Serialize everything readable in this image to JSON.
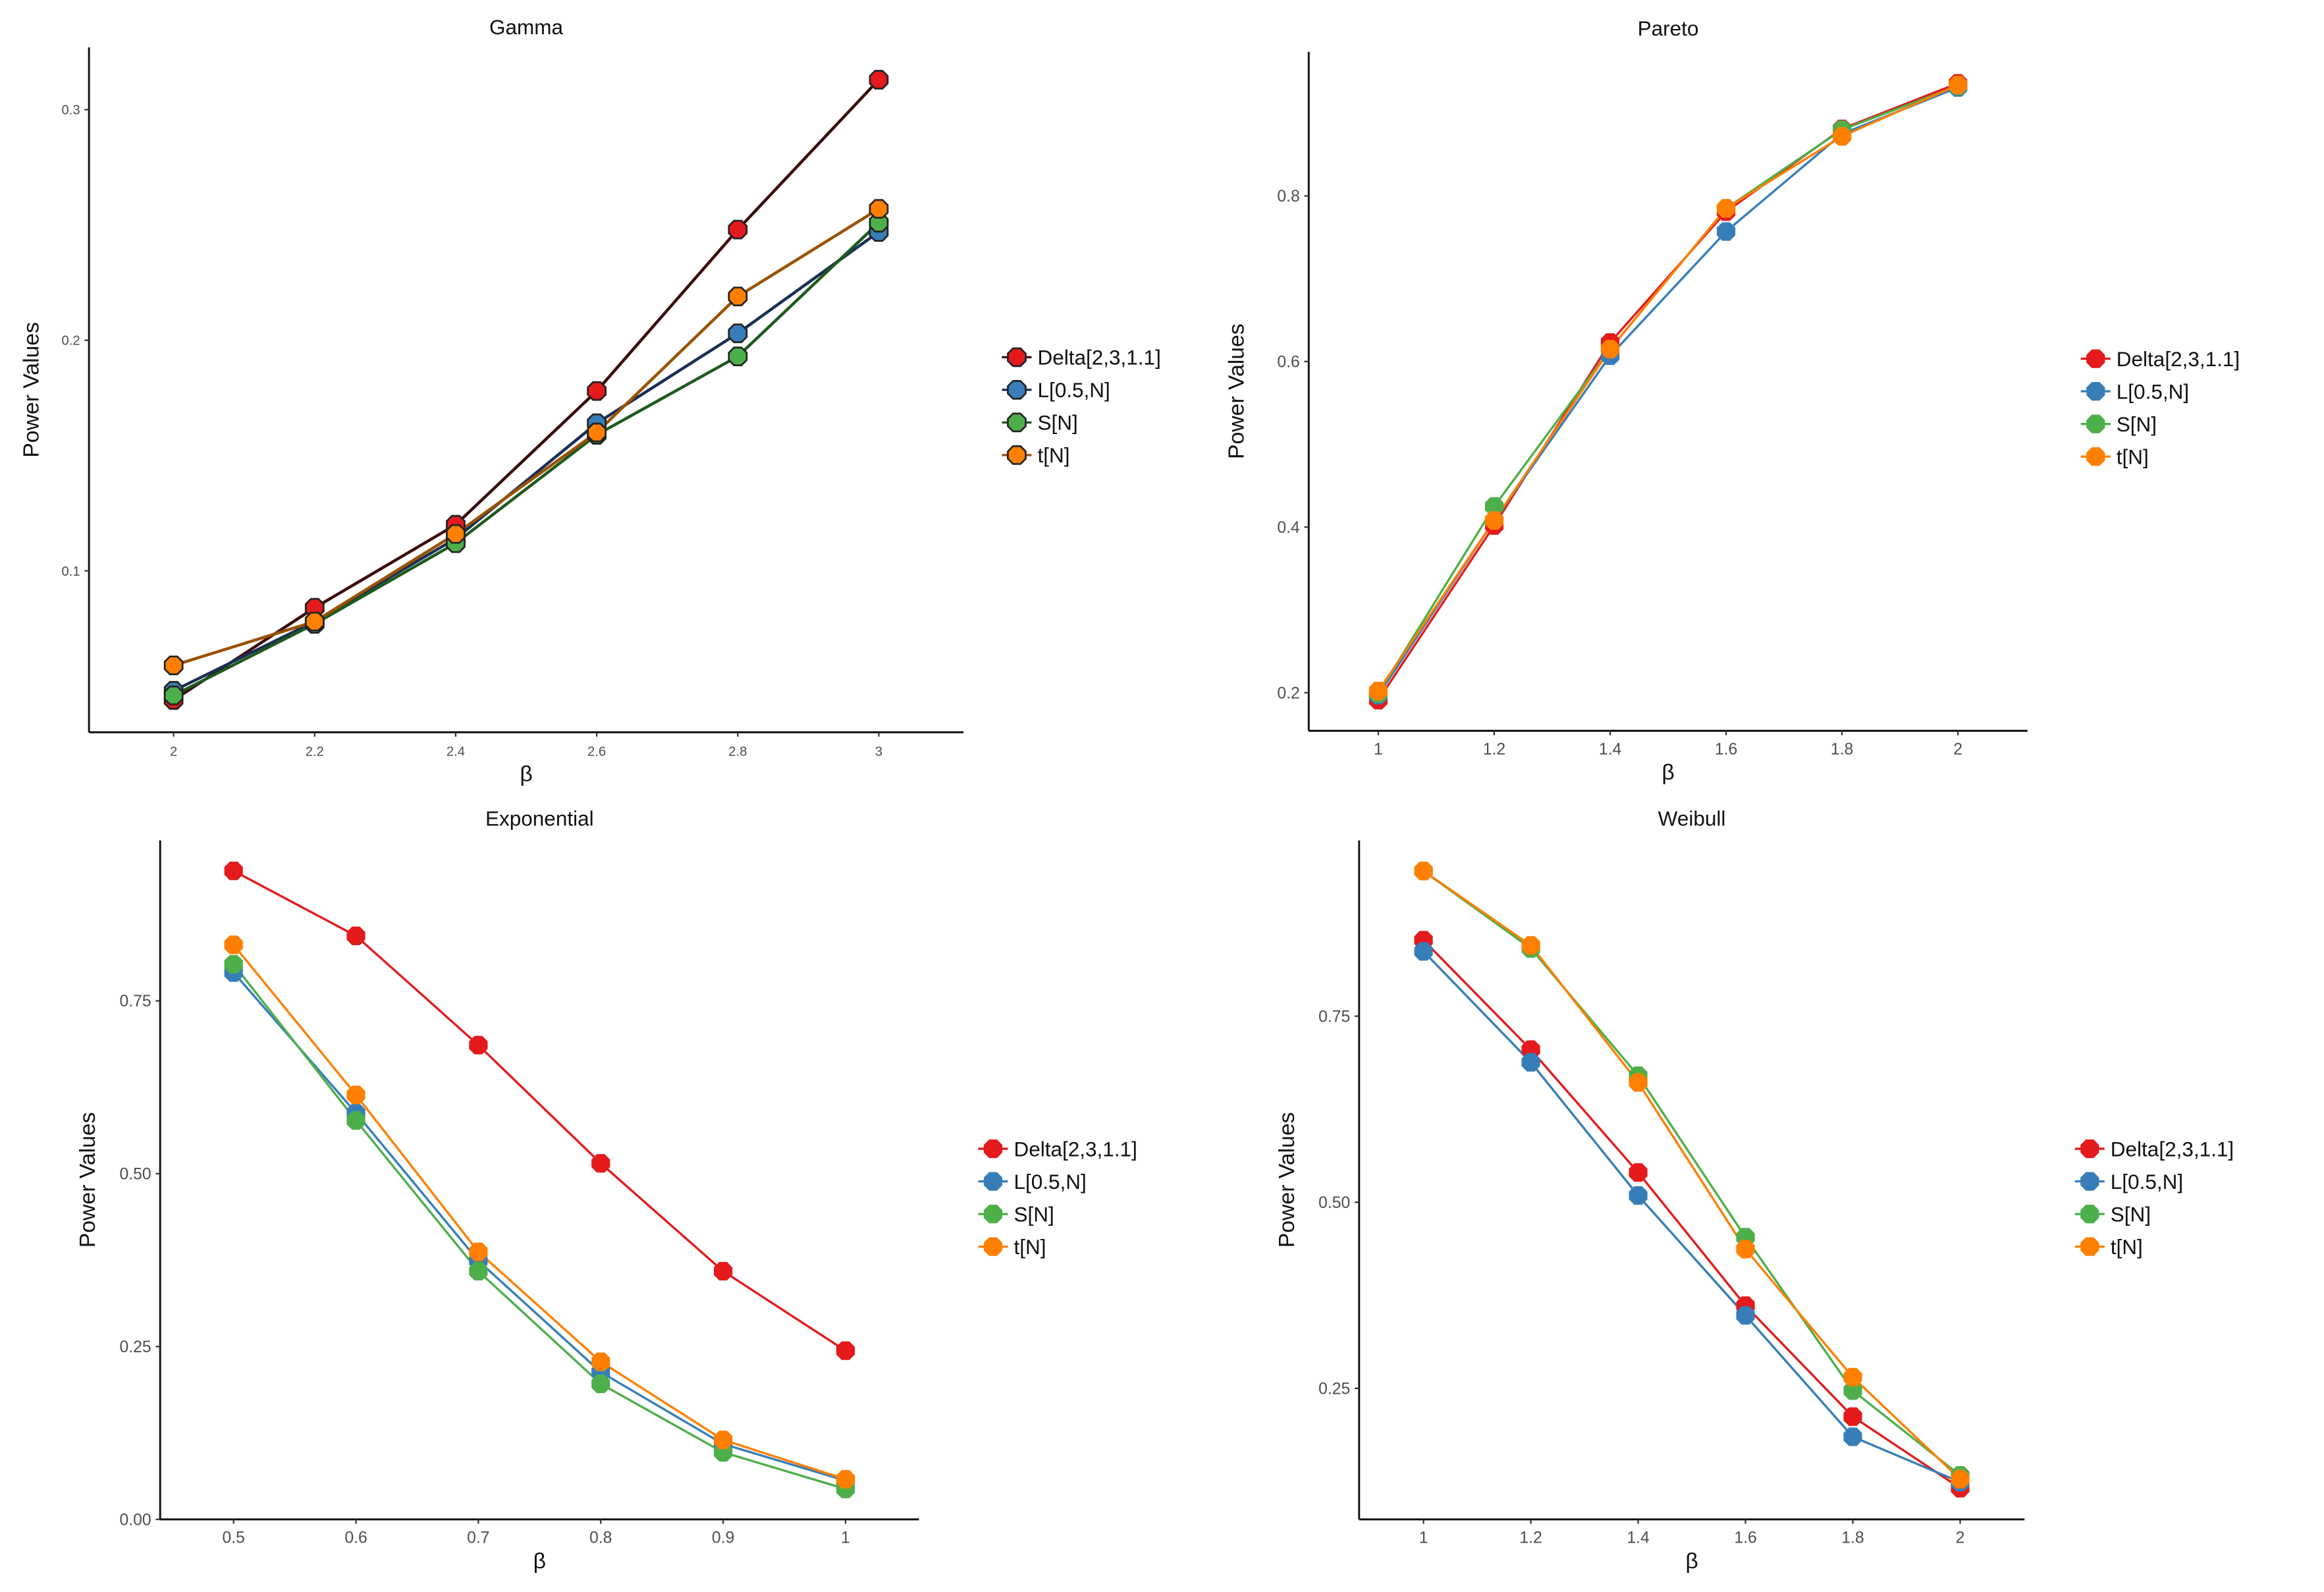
{
  "chart_data": [
    {
      "type": "line",
      "title": "Gamma",
      "xlabel": "β",
      "ylabel": "Power Values",
      "x": [
        2,
        2.2,
        2.4,
        2.6,
        2.8,
        3
      ],
      "xtick_labels": [
        "2",
        "2.2",
        "2.4",
        "2.6",
        "2.8",
        "3"
      ],
      "yticks": [
        0.1,
        0.2,
        0.3
      ],
      "ytick_labels": [
        "0.1",
        "0.2",
        "0.3"
      ],
      "xlim": [
        1.88,
        3.12
      ],
      "ylim": [
        0.03,
        0.327
      ],
      "grid": false,
      "legend": "right",
      "series": [
        {
          "name": "Delta[2,3,1.1]",
          "color": "#e41a1c",
          "line_color": "#3b0a0a",
          "values": [
            0.044,
            0.084,
            0.12,
            0.178,
            0.248,
            0.313
          ]
        },
        {
          "name": "L[0.5,N]",
          "color": "#377eb8",
          "line_color": "#1a2f55",
          "values": [
            0.048,
            0.078,
            0.114,
            0.164,
            0.203,
            0.247
          ]
        },
        {
          "name": "S[N]",
          "color": "#4daf4a",
          "line_color": "#1d5a1d",
          "values": [
            0.046,
            0.077,
            0.112,
            0.159,
            0.193,
            0.251
          ]
        },
        {
          "name": "t[N]",
          "color": "#ff7f00",
          "line_color": "#9a5200",
          "values": [
            0.059,
            0.078,
            0.116,
            0.16,
            0.219,
            0.257
          ]
        }
      ]
    },
    {
      "type": "line",
      "title": "Pareto",
      "xlabel": "β",
      "ylabel": "Power Values",
      "x": [
        1,
        1.2,
        1.4,
        1.6,
        1.8,
        2
      ],
      "xtick_labels": [
        "1",
        "1.2",
        "1.4",
        "1.6",
        "1.8",
        "2"
      ],
      "yticks": [
        0.2,
        0.4,
        0.6,
        0.8
      ],
      "ytick_labels": [
        "0.2",
        "0.4",
        "0.6",
        "0.8"
      ],
      "xlim": [
        0.88,
        2.12
      ],
      "ylim": [
        0.154,
        0.974
      ],
      "grid": false,
      "legend": "right",
      "series": [
        {
          "name": "Delta[2,3,1.1]",
          "color": "#e41a1c",
          "values": [
            0.191,
            0.402,
            0.623,
            0.781,
            0.881,
            0.936
          ]
        },
        {
          "name": "L[0.5,N]",
          "color": "#377eb8",
          "values": [
            0.197,
            0.408,
            0.607,
            0.757,
            0.875,
            0.931
          ]
        },
        {
          "name": "S[N]",
          "color": "#4daf4a",
          "values": [
            0.199,
            0.425,
            0.615,
            0.785,
            0.88,
            0.933
          ]
        },
        {
          "name": "t[N]",
          "color": "#ff7f00",
          "values": [
            0.202,
            0.408,
            0.615,
            0.785,
            0.872,
            0.934
          ]
        }
      ]
    },
    {
      "type": "line",
      "title": "Exponential",
      "xlabel": "β",
      "ylabel": "Power Values",
      "x": [
        0.5,
        0.6,
        0.7,
        0.8,
        0.9,
        1
      ],
      "xtick_labels": [
        "0.5",
        "0.6",
        "0.7",
        "0.8",
        "0.9",
        "1"
      ],
      "yticks": [
        0,
        0.25,
        0.5,
        0.75
      ],
      "ytick_labels": [
        "0.00",
        "0.25",
        "0.50",
        "0.75"
      ],
      "xlim": [
        0.44,
        1.06
      ],
      "ylim": [
        0,
        0.982
      ],
      "grid": false,
      "legend": "right",
      "series": [
        {
          "name": "Delta[2,3,1.1]",
          "color": "#e41a1c",
          "values": [
            0.938,
            0.844,
            0.686,
            0.515,
            0.359,
            0.244
          ]
        },
        {
          "name": "L[0.5,N]",
          "color": "#377eb8",
          "values": [
            0.791,
            0.588,
            0.374,
            0.213,
            0.109,
            0.056
          ]
        },
        {
          "name": "S[N]",
          "color": "#4daf4a",
          "values": [
            0.803,
            0.577,
            0.359,
            0.196,
            0.097,
            0.044
          ]
        },
        {
          "name": "t[N]",
          "color": "#ff7f00",
          "values": [
            0.831,
            0.614,
            0.387,
            0.228,
            0.115,
            0.058
          ]
        }
      ]
    },
    {
      "type": "line",
      "title": "Weibull",
      "xlabel": "β",
      "ylabel": "Power Values",
      "x": [
        1,
        1.2,
        1.4,
        1.6,
        1.8,
        2
      ],
      "xtick_labels": [
        "1",
        "1.2",
        "1.4",
        "1.6",
        "1.8",
        "2"
      ],
      "yticks": [
        0.25,
        0.5,
        0.75
      ],
      "ytick_labels": [
        "0.25",
        "0.50",
        "0.75"
      ],
      "xlim": [
        0.88,
        2.12
      ],
      "ylim": [
        0.074,
        0.986
      ],
      "grid": false,
      "legend": "right",
      "series": [
        {
          "name": "Delta[2,3,1.1]",
          "color": "#e41a1c",
          "values": [
            0.852,
            0.705,
            0.54,
            0.361,
            0.212,
            0.116
          ]
        },
        {
          "name": "L[0.5,N]",
          "color": "#377eb8",
          "values": [
            0.837,
            0.688,
            0.509,
            0.348,
            0.185,
            0.124
          ]
        },
        {
          "name": "S[N]",
          "color": "#4daf4a",
          "values": [
            0.945,
            0.841,
            0.67,
            0.453,
            0.247,
            0.133
          ]
        },
        {
          "name": "t[N]",
          "color": "#ff7f00",
          "values": [
            0.945,
            0.845,
            0.661,
            0.437,
            0.265,
            0.128
          ]
        }
      ]
    }
  ]
}
